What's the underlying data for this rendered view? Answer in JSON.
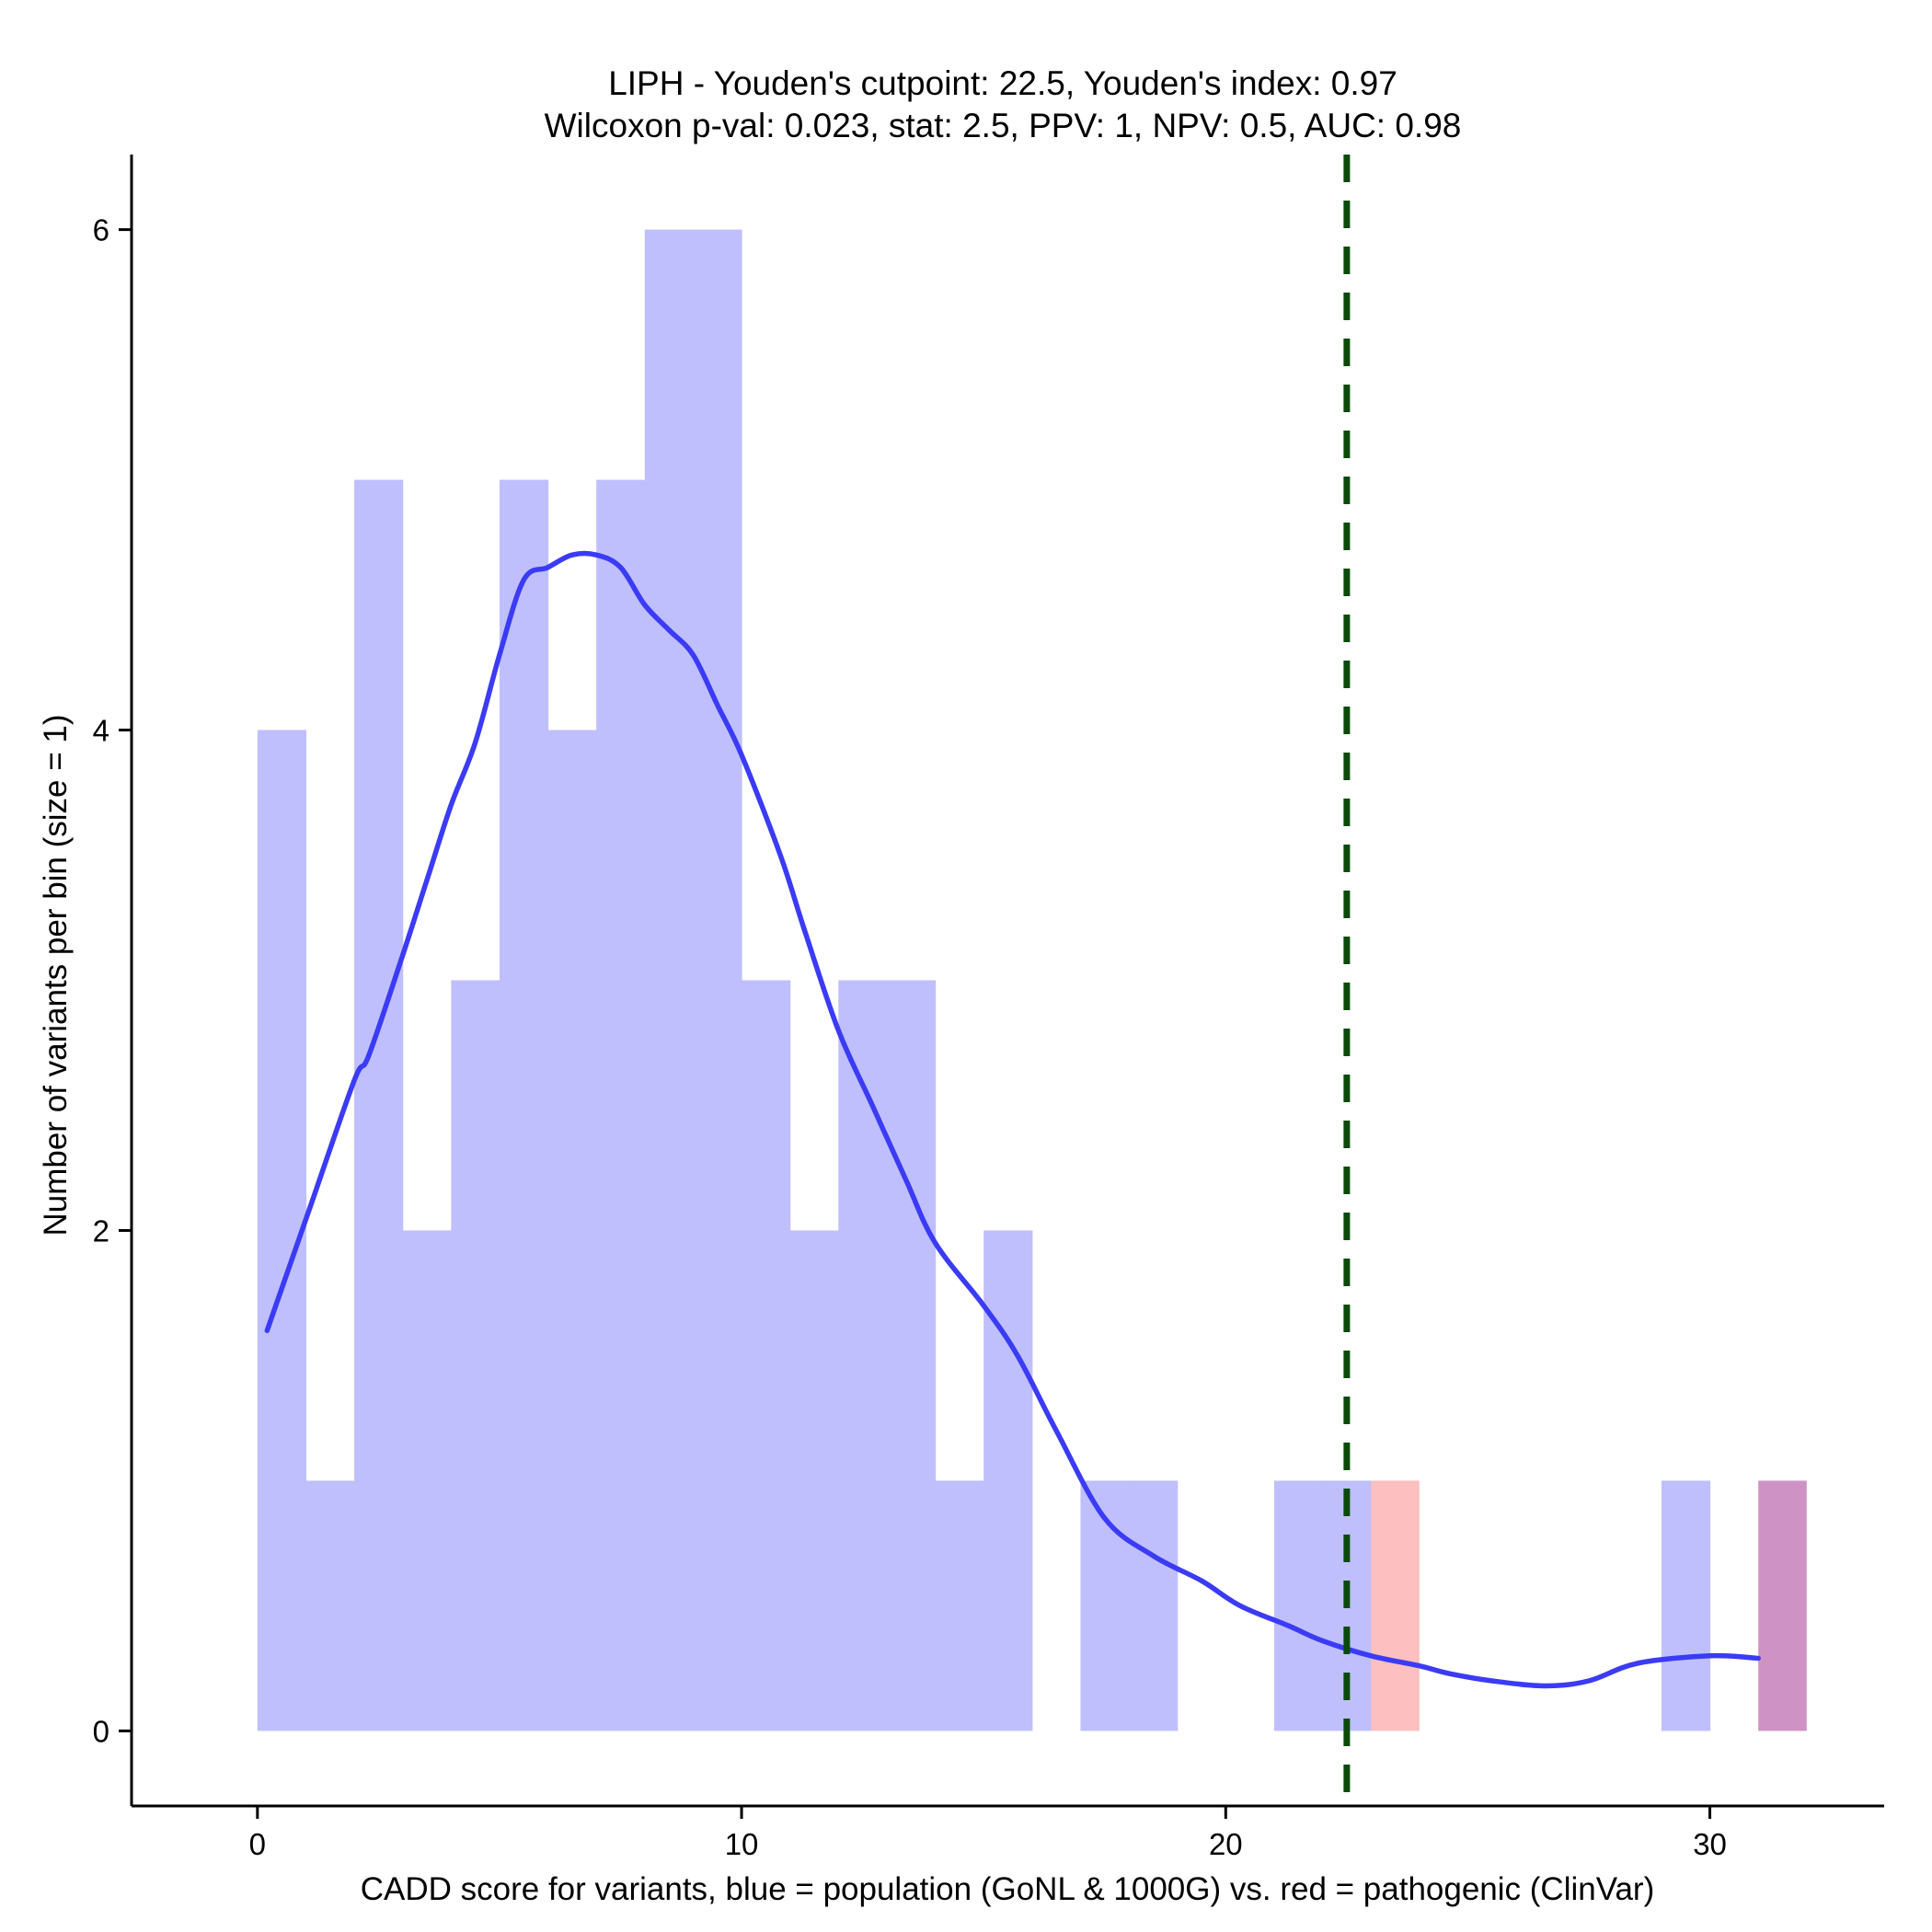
{
  "chart_data": {
    "type": "bar",
    "title_line1": "LIPH - Youden's cutpoint: 22.5, Youden's index: 0.97",
    "title_line2": "Wilcoxon p-val: 0.023, stat: 2.5, PPV: 1, NPV: 0.5, AUC: 0.98",
    "xlabel": "CADD score for variants, blue = population (GoNL & 1000G) vs. red = pathogenic (ClinVar)",
    "ylabel": "Number of variants per bin (size = 1)",
    "xlim": [
      -2.6,
      33.6
    ],
    "ylim": [
      -0.3,
      6.3
    ],
    "x_ticks": [
      0,
      10,
      20,
      30
    ],
    "y_ticks": [
      0,
      2,
      4,
      6
    ],
    "bin_size": 1,
    "cutpoint": 22.5,
    "colors": {
      "population": "#bfbffd",
      "pathogenic": "#fdbfbf",
      "overlap": "#ce93c4",
      "density": "#3b3bf5",
      "cutpoint": "#0a4a0a"
    },
    "series": [
      {
        "name": "population (GoNL & 1000G)",
        "bins": [
          {
            "x": 0,
            "count": 4
          },
          {
            "x": 1,
            "count": 1
          },
          {
            "x": 2,
            "count": 5
          },
          {
            "x": 3,
            "count": 2
          },
          {
            "x": 4,
            "count": 3
          },
          {
            "x": 5,
            "count": 5
          },
          {
            "x": 6,
            "count": 4
          },
          {
            "x": 7,
            "count": 5
          },
          {
            "x": 8,
            "count": 6
          },
          {
            "x": 9,
            "count": 6
          },
          {
            "x": 10,
            "count": 3
          },
          {
            "x": 11,
            "count": 2
          },
          {
            "x": 12,
            "count": 3
          },
          {
            "x": 13,
            "count": 3
          },
          {
            "x": 14,
            "count": 1
          },
          {
            "x": 15,
            "count": 2
          },
          {
            "x": 17,
            "count": 1
          },
          {
            "x": 18,
            "count": 1
          },
          {
            "x": 21,
            "count": 1
          },
          {
            "x": 22,
            "count": 1
          },
          {
            "x": 29,
            "count": 1
          },
          {
            "x": 31,
            "count": 1
          }
        ]
      },
      {
        "name": "pathogenic (ClinVar)",
        "bins": [
          {
            "x": 23,
            "count": 1
          },
          {
            "x": 31,
            "count": 1
          }
        ]
      }
    ],
    "density": {
      "x": [
        0.2,
        1.1,
        2.0,
        2.3,
        3.0,
        3.5,
        4.0,
        4.5,
        5.0,
        5.5,
        6.0,
        6.5,
        7.0,
        7.5,
        8.0,
        8.5,
        9.0,
        9.5,
        10.0,
        10.8,
        11.3,
        12.0,
        12.7,
        13.4,
        14.0,
        15.0,
        15.7,
        16.5,
        17.5,
        18.5,
        19.5,
        20.3,
        21.3,
        22.0,
        23.0,
        24.0,
        24.6,
        25.5,
        26.6,
        27.5,
        28.5,
        30.0,
        31.0
      ],
      "y": [
        1.6,
        2.1,
        2.6,
        2.7,
        3.1,
        3.4,
        3.7,
        3.95,
        4.3,
        4.6,
        4.65,
        4.7,
        4.7,
        4.65,
        4.5,
        4.4,
        4.3,
        4.1,
        3.9,
        3.5,
        3.2,
        2.8,
        2.5,
        2.2,
        1.95,
        1.7,
        1.5,
        1.2,
        0.85,
        0.7,
        0.6,
        0.5,
        0.42,
        0.36,
        0.3,
        0.26,
        0.23,
        0.2,
        0.18,
        0.2,
        0.27,
        0.3,
        0.29
      ]
    }
  }
}
